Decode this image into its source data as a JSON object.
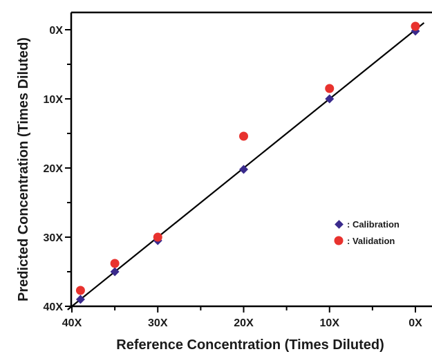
{
  "chart_data": {
    "type": "scatter",
    "xlabel": "Reference Concentration (Times Diluted)",
    "ylabel": "Predicted Concentration (Times Diluted)",
    "xlim": [
      40,
      0
    ],
    "ylim": [
      0,
      40
    ],
    "x_reversed": true,
    "y_reversed": true,
    "x_ticks": [
      {
        "value": 40,
        "label": "40X"
      },
      {
        "value": 30,
        "label": "30X"
      },
      {
        "value": 20,
        "label": "20X"
      },
      {
        "value": 10,
        "label": "10X"
      },
      {
        "value": 0,
        "label": "0X"
      }
    ],
    "y_ticks": [
      {
        "value": 0,
        "label": "0X"
      },
      {
        "value": 10,
        "label": "10X"
      },
      {
        "value": 20,
        "label": "20X"
      },
      {
        "value": 30,
        "label": "30X"
      },
      {
        "value": 40,
        "label": "40X"
      }
    ],
    "minor_tick_step": 5,
    "series": [
      {
        "name": ": Calibration",
        "marker": "diamond",
        "color": "#3a2a8c",
        "points": [
          {
            "x": 39,
            "y": 39
          },
          {
            "x": 35,
            "y": 35
          },
          {
            "x": 30,
            "y": 30.5
          },
          {
            "x": 20,
            "y": 20.2
          },
          {
            "x": 10,
            "y": 10
          },
          {
            "x": 0,
            "y": 0.2
          }
        ]
      },
      {
        "name": ": Validation",
        "marker": "circle",
        "color": "#e8322e",
        "points": [
          {
            "x": 39,
            "y": 37.7
          },
          {
            "x": 35,
            "y": 33.8
          },
          {
            "x": 30,
            "y": 30
          },
          {
            "x": 20,
            "y": 15.4
          },
          {
            "x": 10,
            "y": 8.5
          },
          {
            "x": 0,
            "y": -0.5
          }
        ]
      }
    ],
    "fit_line": {
      "color": "#000000",
      "from": [
        40.5,
        40.5
      ],
      "to": [
        -1,
        -1
      ]
    },
    "legend_position": "right"
  }
}
